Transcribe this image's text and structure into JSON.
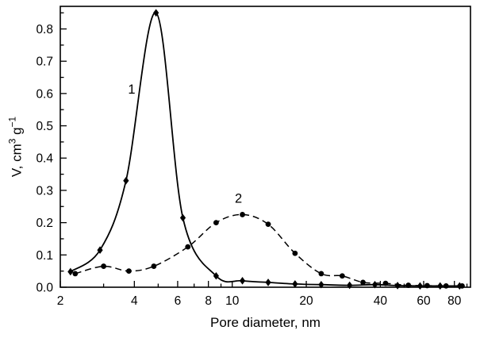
{
  "figure": {
    "background": "#ffffff",
    "frame_color": "#000000"
  },
  "chart_data": {
    "type": "line",
    "title": "",
    "xlabel": "Pore diameter, nm",
    "ylabel": "V, cm³ g⁻¹",
    "ylabel_parts": {
      "base1": "V, cm",
      "sup1": "3",
      "base2": " g",
      "sup2": "−1"
    },
    "x_scale": "log",
    "grid": "off",
    "legend": "none",
    "xlim": [
      2,
      93
    ],
    "ylim": [
      0,
      0.87
    ],
    "x_major_ticks": [
      2,
      4,
      6,
      8,
      10,
      20,
      40,
      60,
      80
    ],
    "x_minor_ticks": [
      3,
      5,
      7,
      9,
      30,
      50,
      70,
      90
    ],
    "y_major_ticks": [
      "0.0",
      "0.1",
      "0.2",
      "0.3",
      "0.4",
      "0.5",
      "0.6",
      "0.7",
      "0.8"
    ],
    "y_minor_ticks": [
      0.05,
      0.15,
      0.25,
      0.35,
      0.45,
      0.55,
      0.65,
      0.75,
      0.85
    ],
    "series": [
      {
        "name": "1",
        "line_style": "solid",
        "marker": "diamond",
        "color": "#000000",
        "points": [
          [
            2.2,
            0.048
          ],
          [
            2.9,
            0.115
          ],
          [
            3.7,
            0.33
          ],
          [
            4.9,
            0.85
          ],
          [
            6.3,
            0.215
          ],
          [
            8.6,
            0.035
          ],
          [
            11,
            0.02
          ],
          [
            14,
            0.015
          ],
          [
            18,
            0.01
          ],
          [
            23,
            0.008
          ],
          [
            30,
            0.006
          ],
          [
            38,
            0.008
          ],
          [
            47,
            0.005
          ],
          [
            58,
            0.004
          ],
          [
            70,
            0.004
          ],
          [
            84,
            0.004
          ]
        ]
      },
      {
        "name": "2",
        "line_style": "dashed",
        "marker": "circle",
        "color": "#000000",
        "points": [
          [
            2.3,
            0.042
          ],
          [
            3.0,
            0.065
          ],
          [
            3.8,
            0.05
          ],
          [
            4.8,
            0.065
          ],
          [
            6.6,
            0.125
          ],
          [
            8.6,
            0.2
          ],
          [
            11,
            0.225
          ],
          [
            14,
            0.195
          ],
          [
            18,
            0.105
          ],
          [
            23,
            0.042
          ],
          [
            28,
            0.035
          ],
          [
            34,
            0.015
          ],
          [
            42,
            0.012
          ],
          [
            52,
            0.006
          ],
          [
            62,
            0.005
          ],
          [
            74,
            0.004
          ],
          [
            86,
            0.004
          ]
        ]
      }
    ],
    "annotations": [
      {
        "text": "1",
        "x": 3.9,
        "y": 0.6
      },
      {
        "text": "2",
        "x": 10.6,
        "y": 0.262
      }
    ]
  }
}
